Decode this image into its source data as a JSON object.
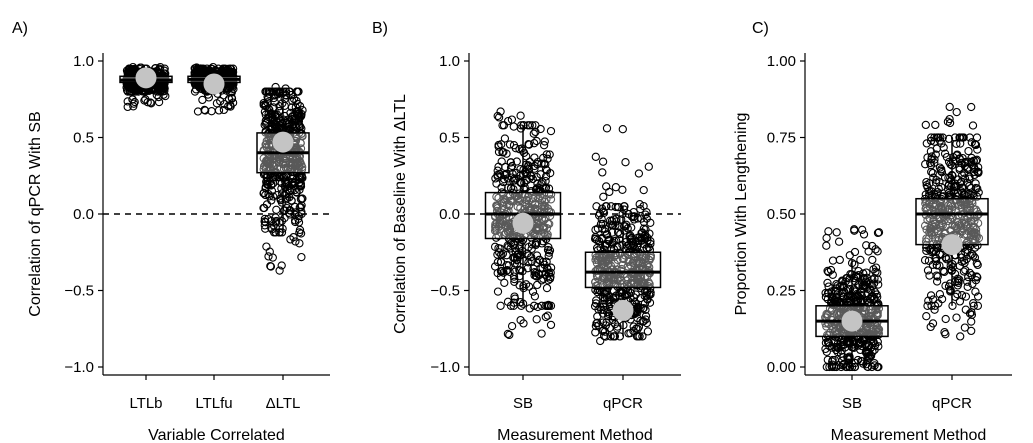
{
  "chart_data": [
    {
      "type": "box",
      "panel_label": "A)",
      "xlabel": "Variable Correlated",
      "ylabel": "Correlation of qPCR With SB",
      "ylim": [
        -1.0,
        1.0
      ],
      "yticks": [
        -1.0,
        -0.5,
        0.0,
        0.5,
        1.0
      ],
      "ytick_labels": [
        "−1.0",
        "−0.5",
        "0.0",
        "0.5",
        "1.0"
      ],
      "reference_line": 0.0,
      "categories": [
        "LTLb",
        "LTLfu",
        "ΔLTL"
      ],
      "boxes": [
        {
          "category": "LTLb",
          "q1": 0.86,
          "median": 0.875,
          "q3": 0.9,
          "whisker_low": 0.8,
          "whisker_high": 0.95,
          "mean": 0.89,
          "points_min": 0.7,
          "points_max": 0.96
        },
        {
          "category": "LTLfu",
          "q1": 0.86,
          "median": 0.88,
          "q3": 0.9,
          "whisker_low": 0.8,
          "whisker_high": 0.95,
          "mean": 0.85,
          "points_min": 0.67,
          "points_max": 0.96
        },
        {
          "category": "ΔLTL",
          "q1": 0.27,
          "median": 0.4,
          "q3": 0.53,
          "whisker_low": -0.12,
          "whisker_high": 0.8,
          "mean": 0.47,
          "points_min": -0.37,
          "points_max": 0.83
        }
      ]
    },
    {
      "type": "box",
      "panel_label": "B)",
      "xlabel": "Measurement Method",
      "ylabel": "Correlation of Baseline With ΔLTL",
      "ylim": [
        -1.0,
        1.0
      ],
      "yticks": [
        -1.0,
        -0.5,
        0.0,
        0.5,
        1.0
      ],
      "ytick_labels": [
        "−1.0",
        "−0.5",
        "0.0",
        "0.5",
        "1.0"
      ],
      "reference_line": 0.0,
      "categories": [
        "SB",
        "qPCR"
      ],
      "boxes": [
        {
          "category": "SB",
          "q1": -0.16,
          "median": 0.0,
          "q3": 0.14,
          "whisker_low": -0.6,
          "whisker_high": 0.58,
          "mean": -0.06,
          "points_min": -0.79,
          "points_max": 0.67
        },
        {
          "category": "qPCR",
          "q1": -0.48,
          "median": -0.38,
          "q3": -0.25,
          "whisker_low": -0.8,
          "whisker_high": 0.05,
          "mean": -0.63,
          "points_min": -0.83,
          "points_max": 0.56
        }
      ]
    },
    {
      "type": "box",
      "panel_label": "C)",
      "xlabel": "Measurement Method",
      "ylabel": "Proportion With Lengthening",
      "ylim": [
        0.0,
        1.0
      ],
      "yticks": [
        0.0,
        0.25,
        0.5,
        0.75,
        1.0
      ],
      "ytick_labels": [
        "0.00",
        "0.25",
        "0.50",
        "0.75",
        "1.00"
      ],
      "categories": [
        "SB",
        "qPCR"
      ],
      "boxes": [
        {
          "category": "SB",
          "q1": 0.1,
          "median": 0.15,
          "q3": 0.2,
          "whisker_low": 0.0,
          "whisker_high": 0.35,
          "mean": 0.15,
          "points_min": 0.0,
          "points_max": 0.45
        },
        {
          "category": "qPCR",
          "q1": 0.4,
          "median": 0.5,
          "q3": 0.55,
          "whisker_low": 0.2,
          "whisker_high": 0.75,
          "mean": 0.4,
          "points_min": 0.1,
          "points_max": 0.85
        }
      ]
    }
  ]
}
